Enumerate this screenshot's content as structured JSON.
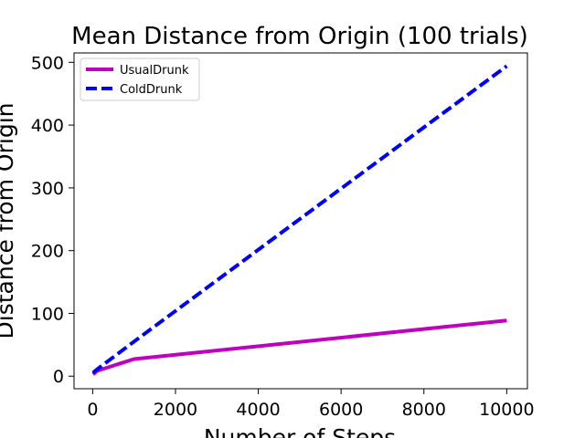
{
  "chart_data": {
    "type": "line",
    "title": "Mean Distance from Origin (100 trials)",
    "xlabel": "Number of Steps",
    "ylabel": "Distance from Origin",
    "xlim": [
      -450,
      10500
    ],
    "ylim": [
      -20,
      515
    ],
    "x_ticks": [
      0,
      2000,
      4000,
      6000,
      8000,
      10000
    ],
    "y_ticks": [
      0,
      100,
      200,
      300,
      400,
      500
    ],
    "grid": false,
    "legend_position": "top-left",
    "series": [
      {
        "name": "UsualDrunk",
        "color": "#bf00bf",
        "style": "solid",
        "x": [
          10,
          100,
          1000,
          10000
        ],
        "y": [
          2.8,
          8.4,
          27.3,
          88.8
        ]
      },
      {
        "name": "ColdDrunk",
        "color": "#0000ff",
        "style": "dashed",
        "x": [
          10,
          100,
          1000,
          10000
        ],
        "y": [
          5.5,
          10.6,
          55.1,
          494.0
        ]
      }
    ]
  }
}
